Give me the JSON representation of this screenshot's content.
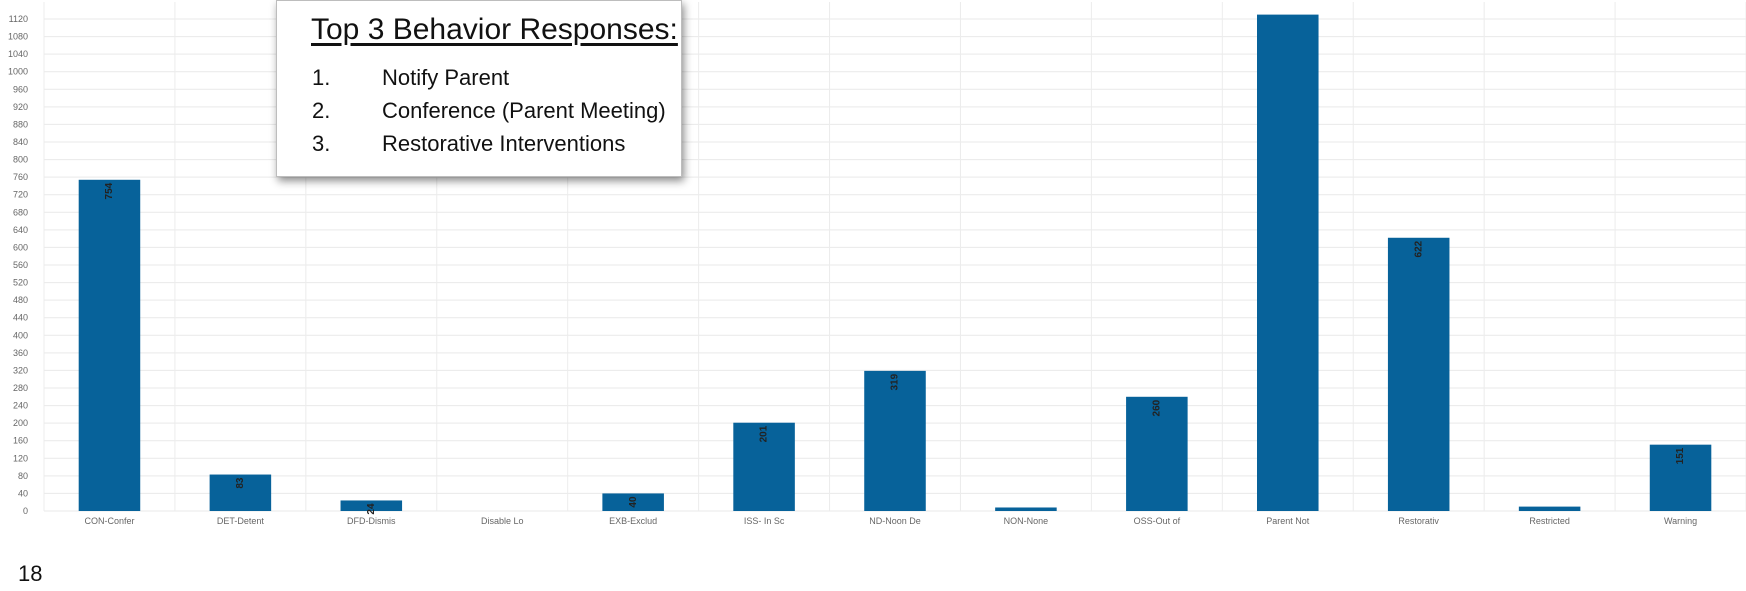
{
  "chart_data": {
    "type": "bar",
    "categories": [
      "CON-Confer",
      "DET-Detent",
      "DFD-Dismis",
      "Disable Lo",
      "EXB-Exclud",
      "ISS- In Sc",
      "ND-Noon De",
      "NON-None",
      "OSS-Out of",
      "Parent Not",
      "Restorativ",
      "Restricted",
      "Warning"
    ],
    "values": [
      754,
      83,
      24,
      0,
      40,
      201,
      319,
      8,
      260,
      1130,
      622,
      10,
      151
    ],
    "data_labels": [
      "754",
      "83",
      "24",
      "",
      "40",
      "201",
      "319",
      "",
      "260",
      "",
      "622",
      "",
      "151"
    ],
    "yticks": [
      0,
      40,
      80,
      120,
      160,
      200,
      240,
      280,
      320,
      360,
      400,
      440,
      480,
      520,
      560,
      600,
      640,
      680,
      720,
      760,
      800,
      840,
      880,
      920,
      960,
      1000,
      1040,
      1080,
      1120
    ],
    "ylim": [
      0,
      1140
    ],
    "title": "",
    "xlabel": "",
    "ylabel": "",
    "grid": true,
    "bar_color": "#07629a"
  },
  "callout": {
    "title": "Top 3 Behavior Responses:",
    "items": [
      {
        "num": "1.",
        "text": "Notify Parent"
      },
      {
        "num": "2.",
        "text": "Conference (Parent Meeting)"
      },
      {
        "num": "3.",
        "text": "Restorative Interventions"
      }
    ]
  },
  "slide_number": "18"
}
